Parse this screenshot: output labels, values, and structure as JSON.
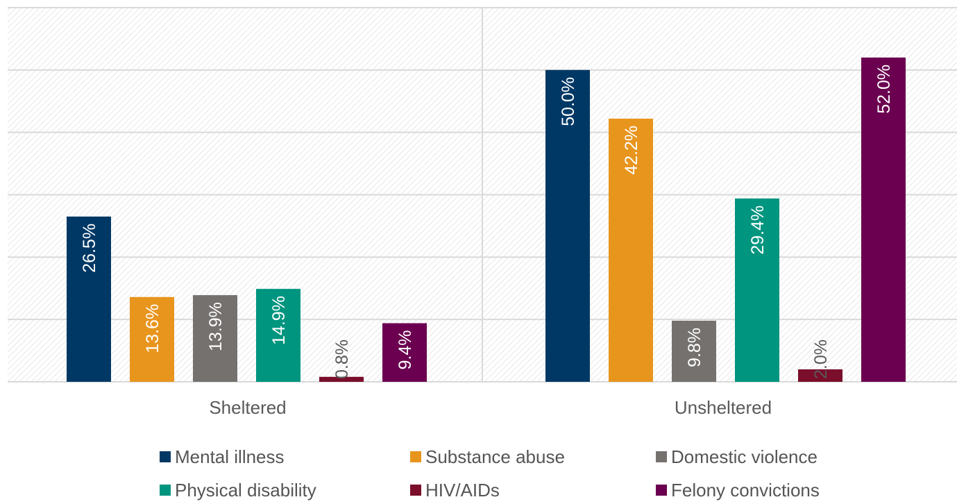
{
  "chart_data": {
    "type": "bar",
    "categories": [
      "Sheltered",
      "Unsheltered"
    ],
    "series": [
      {
        "name": "Mental illness",
        "color": "#003865",
        "values": [
          26.5,
          50.0
        ],
        "labels": [
          "26.5%",
          "50.0%"
        ]
      },
      {
        "name": "Substance abuse",
        "color": "#E8951E",
        "values": [
          13.6,
          42.2
        ],
        "labels": [
          "13.6%",
          "42.2%"
        ]
      },
      {
        "name": "Domestic violence",
        "color": "#75716F",
        "values": [
          13.9,
          9.8
        ],
        "labels": [
          "13.9%",
          "9.8%"
        ]
      },
      {
        "name": "Physical disability",
        "color": "#00957F",
        "values": [
          14.9,
          29.4
        ],
        "labels": [
          "14.9%",
          "29.4%"
        ]
      },
      {
        "name": "HIV/AIDs",
        "color": "#7A0E2B",
        "values": [
          0.8,
          2.0
        ],
        "labels": [
          "0.8%",
          "2.0%"
        ]
      },
      {
        "name": "Felony convictions",
        "color": "#6B0050",
        "values": [
          9.4,
          52.0
        ],
        "labels": [
          "9.4%",
          "52.0%"
        ]
      }
    ],
    "ylim": [
      0,
      60
    ],
    "gridlines": [
      10,
      20,
      30,
      40,
      50,
      60
    ],
    "grid": true,
    "legend_position": "bottom",
    "background": "diagonal hatch"
  }
}
